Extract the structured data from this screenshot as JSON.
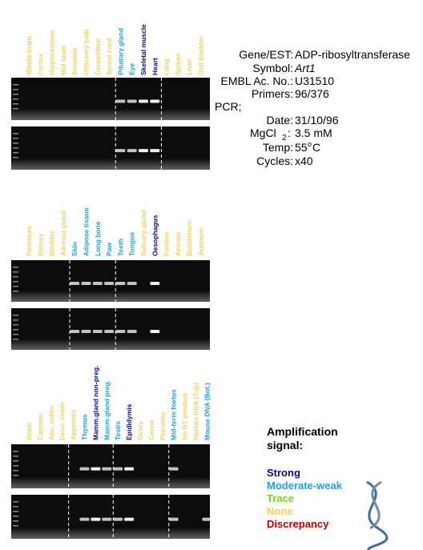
{
  "panels": [
    {
      "lanes": [
        {
          "label": "Whole brain",
          "color": "#f0d060"
        },
        {
          "label": "Cortex",
          "color": "#f0d060"
        },
        {
          "label": "Hippocampus",
          "color": "#f0d060"
        },
        {
          "label": "Mid brain",
          "color": "#f0d060"
        },
        {
          "label": "Striatum",
          "color": "#f0d060"
        },
        {
          "label": "Olfactory bulb",
          "color": "#f0d060"
        },
        {
          "label": "Cerebellum",
          "color": "#f0d060"
        },
        {
          "label": "Spinal cord",
          "color": "#f0d060"
        },
        {
          "label": "Pituitary gland",
          "color": "#1ea0e6"
        },
        {
          "label": "Eye",
          "color": "#1ea0e6"
        },
        {
          "label": "Skeletal muscle",
          "color": "#0a0a80"
        },
        {
          "label": "Heart",
          "color": "#0a0a80"
        },
        {
          "label": "Lung",
          "color": "#f0d060"
        },
        {
          "label": "Spleen",
          "color": "#f0d060"
        },
        {
          "label": "Liver",
          "color": "#f0d060"
        },
        {
          "label": "Gall bladder",
          "color": "#f0d060"
        }
      ]
    },
    {
      "lanes": [
        {
          "label": "Pancreas",
          "color": "#f0d060"
        },
        {
          "label": "Kidney",
          "color": "#f0d060"
        },
        {
          "label": "Bladder",
          "color": "#f0d060"
        },
        {
          "label": "Adrenal gland",
          "color": "#f0d060"
        },
        {
          "label": "Skin",
          "color": "#1ea0e6"
        },
        {
          "label": "Adipose tissue",
          "color": "#1ea0e6"
        },
        {
          "label": "Long bone",
          "color": "#1ea0e6"
        },
        {
          "label": "Paw",
          "color": "#1ea0e6"
        },
        {
          "label": "Teeth",
          "color": "#1ea0e6"
        },
        {
          "label": "Tongue",
          "color": "#1ea0e6"
        },
        {
          "label": "Salivary gland",
          "color": "#f0d060"
        },
        {
          "label": "Oesophagus",
          "color": "#0a0a80"
        },
        {
          "label": "Fundus",
          "color": "#f0d060"
        },
        {
          "label": "Antrum",
          "color": "#f0d060"
        },
        {
          "label": "Duodenum",
          "color": "#f0d060"
        },
        {
          "label": "Jejunum",
          "color": "#f0d060"
        }
      ]
    },
    {
      "lanes": [
        {
          "label": "Ileum",
          "color": "#f0d060"
        },
        {
          "label": "Caecum",
          "color": "#f0d060"
        },
        {
          "label": "Asc. colon",
          "color": "#f0d060"
        },
        {
          "label": "Desc. colon",
          "color": "#f0d060"
        },
        {
          "label": "Appendix",
          "color": "#f0d060"
        },
        {
          "label": "Thymus",
          "color": "#1ea0e6"
        },
        {
          "label": "Mamm.gland non-preg.",
          "color": "#0a0a80"
        },
        {
          "label": "Mamm.gland preg.",
          "color": "#1ea0e6"
        },
        {
          "label": "Testis",
          "color": "#1ea0e6"
        },
        {
          "label": "Epididymis",
          "color": "#0a0a80"
        },
        {
          "label": "Ovary",
          "color": "#f0d060"
        },
        {
          "label": "Cervix",
          "color": "#f0d060"
        },
        {
          "label": "Placenta",
          "color": "#f0d060"
        },
        {
          "label": "Mid-term foetus",
          "color": "#1ea0e6"
        },
        {
          "label": "No RT product",
          "color": "#f0d060"
        },
        {
          "label": "Human DNA (Top)",
          "color": "#f0d060"
        },
        {
          "label": "Mouse DNA (Bot.)",
          "color": "#1ea0e6"
        }
      ]
    }
  ],
  "info": {
    "gene": {
      "label": "Gene/EST:",
      "value": "ADP-ribosyltransferase"
    },
    "symbol": {
      "label": "Symbol:",
      "value": "Art1"
    },
    "embl": {
      "label": "EMBL Ac. No.:",
      "value": "U31510"
    },
    "primers": {
      "label": "Primers:",
      "value": "96/376"
    },
    "pcr": "PCR;",
    "date": {
      "label": "Date:",
      "value": "31/10/96"
    },
    "mgcl": {
      "label": "MgCl",
      "sub": "2",
      "colon": ":",
      "value": "3.5 mM"
    },
    "temp": {
      "label": "Temp:",
      "value": "55",
      "sup": "o",
      "unit": "C"
    },
    "cycles": {
      "label": "Cycles:",
      "value": "x40"
    }
  },
  "legend": {
    "title": "Amplification",
    "title2": "signal:",
    "items": [
      {
        "label": "Strong",
        "color": "#0a0a80"
      },
      {
        "label": "Moderate-weak",
        "color": "#1ea0e6"
      },
      {
        "label": "Trace",
        "color": "#80d020"
      },
      {
        "label": "None",
        "color": "#f0d060"
      },
      {
        "label": "Discrepancy",
        "color": "#c00000"
      }
    ]
  }
}
